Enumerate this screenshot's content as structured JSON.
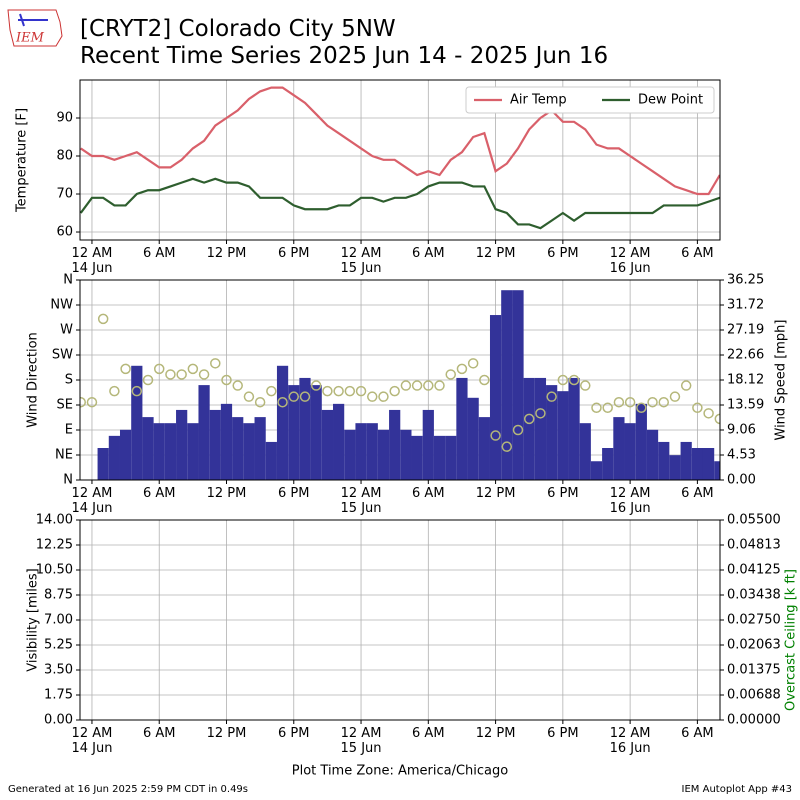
{
  "header": {
    "title": [
      "[CRYT2] Colorado City 5NW",
      "Recent Time Series 2025 Jun 14 - 2025 Jun 16"
    ],
    "logo_text": "IEM"
  },
  "footer": {
    "left": "Generated at 16 Jun 2025 2:59 PM CDT in 0.49s",
    "right": "IEM Autoplot App #43"
  },
  "chart_data": [
    {
      "type": "line",
      "ylabel": "Temperature [F]",
      "x": [
        "2025-06-13T23:00",
        "2025-06-14T00:00",
        "2025-06-14T01:00",
        "2025-06-14T02:00",
        "2025-06-14T03:00",
        "2025-06-14T04:00",
        "2025-06-14T05:00",
        "2025-06-14T06:00",
        "2025-06-14T07:00",
        "2025-06-14T08:00",
        "2025-06-14T09:00",
        "2025-06-14T10:00",
        "2025-06-14T11:00",
        "2025-06-14T12:00",
        "2025-06-14T13:00",
        "2025-06-14T14:00",
        "2025-06-14T15:00",
        "2025-06-14T16:00",
        "2025-06-14T17:00",
        "2025-06-14T18:00",
        "2025-06-14T19:00",
        "2025-06-14T20:00",
        "2025-06-14T21:00",
        "2025-06-14T22:00",
        "2025-06-14T23:00",
        "2025-06-15T00:00",
        "2025-06-15T01:00",
        "2025-06-15T02:00",
        "2025-06-15T03:00",
        "2025-06-15T04:00",
        "2025-06-15T05:00",
        "2025-06-15T06:00",
        "2025-06-15T07:00",
        "2025-06-15T08:00",
        "2025-06-15T09:00",
        "2025-06-15T10:00",
        "2025-06-15T11:00",
        "2025-06-15T12:00",
        "2025-06-15T13:00",
        "2025-06-15T14:00",
        "2025-06-15T15:00",
        "2025-06-15T16:00",
        "2025-06-15T17:00",
        "2025-06-15T18:00",
        "2025-06-15T19:00",
        "2025-06-15T20:00",
        "2025-06-15T21:00",
        "2025-06-15T22:00",
        "2025-06-15T23:00",
        "2025-06-16T00:00",
        "2025-06-16T01:00",
        "2025-06-16T02:00",
        "2025-06-16T03:00",
        "2025-06-16T04:00",
        "2025-06-16T05:00",
        "2025-06-16T06:00",
        "2025-06-16T07:00",
        "2025-06-16T08:00"
      ],
      "series": [
        {
          "name": "Air Temp",
          "color": "#d9606a",
          "values": [
            82,
            80,
            80,
            79,
            80,
            81,
            79,
            77,
            77,
            79,
            82,
            84,
            88,
            90,
            92,
            95,
            97,
            98,
            98,
            96,
            94,
            91,
            88,
            86,
            84,
            82,
            80,
            79,
            79,
            77,
            75,
            76,
            75,
            79,
            81,
            85,
            86,
            76,
            78,
            82,
            87,
            90,
            92,
            89,
            89,
            87,
            83,
            82,
            82,
            80,
            78,
            76,
            74,
            72,
            71,
            70,
            70,
            75
          ]
        },
        {
          "name": "Dew Point",
          "color": "#2e5e2e",
          "values": [
            65,
            69,
            69,
            67,
            67,
            70,
            71,
            71,
            72,
            73,
            74,
            73,
            74,
            73,
            73,
            72,
            69,
            69,
            69,
            67,
            66,
            66,
            66,
            67,
            67,
            69,
            69,
            68,
            69,
            69,
            70,
            72,
            73,
            73,
            73,
            72,
            72,
            66,
            65,
            62,
            62,
            61,
            63,
            65,
            63,
            65,
            65,
            65,
            65,
            65,
            65,
            65,
            67,
            67,
            67,
            67,
            68,
            69
          ]
        }
      ],
      "xlim": [
        "2025-06-13T22:56",
        "2025-06-16T08:01"
      ],
      "xticks": [
        {
          "value": "2025-06-14T00:00",
          "label": "12 AM\n14 Jun"
        },
        {
          "value": "2025-06-14T06:00",
          "label": "6 AM"
        },
        {
          "value": "2025-06-14T12:00",
          "label": "12 PM"
        },
        {
          "value": "2025-06-14T18:00",
          "label": "6 PM"
        },
        {
          "value": "2025-06-15T00:00",
          "label": "12 AM\n15 Jun"
        },
        {
          "value": "2025-06-15T06:00",
          "label": "6 AM"
        },
        {
          "value": "2025-06-15T12:00",
          "label": "12 PM"
        },
        {
          "value": "2025-06-15T18:00",
          "label": "6 PM"
        },
        {
          "value": "2025-06-16T00:00",
          "label": "12 AM\n16 Jun"
        },
        {
          "value": "2025-06-16T06:00",
          "label": "6 AM"
        }
      ],
      "ylim": [
        57.9,
        100
      ],
      "yticks": [
        60,
        70,
        80,
        90
      ],
      "grid": true,
      "legend": "upper right"
    },
    {
      "type": "combo",
      "ylabel": "Wind Direction",
      "y2label": "Wind Speed [mph]",
      "x": [
        "2025-06-13T23:00",
        "2025-06-14T00:00",
        "2025-06-14T01:00",
        "2025-06-14T02:00",
        "2025-06-14T03:00",
        "2025-06-14T04:00",
        "2025-06-14T05:00",
        "2025-06-14T06:00",
        "2025-06-14T07:00",
        "2025-06-14T08:00",
        "2025-06-14T09:00",
        "2025-06-14T10:00",
        "2025-06-14T11:00",
        "2025-06-14T12:00",
        "2025-06-14T13:00",
        "2025-06-14T14:00",
        "2025-06-14T15:00",
        "2025-06-14T16:00",
        "2025-06-14T17:00",
        "2025-06-14T18:00",
        "2025-06-14T19:00",
        "2025-06-14T20:00",
        "2025-06-14T21:00",
        "2025-06-14T22:00",
        "2025-06-14T23:00",
        "2025-06-15T00:00",
        "2025-06-15T01:00",
        "2025-06-15T02:00",
        "2025-06-15T03:00",
        "2025-06-15T04:00",
        "2025-06-15T05:00",
        "2025-06-15T06:00",
        "2025-06-15T07:00",
        "2025-06-15T08:00",
        "2025-06-15T09:00",
        "2025-06-15T10:00",
        "2025-06-15T11:00",
        "2025-06-15T12:00",
        "2025-06-15T13:00",
        "2025-06-15T14:00",
        "2025-06-15T15:00",
        "2025-06-15T16:00",
        "2025-06-15T17:00",
        "2025-06-15T18:00",
        "2025-06-15T19:00",
        "2025-06-15T20:00",
        "2025-06-15T21:00",
        "2025-06-15T22:00",
        "2025-06-15T23:00",
        "2025-06-16T00:00",
        "2025-06-16T01:00",
        "2025-06-16T02:00",
        "2025-06-16T03:00",
        "2025-06-16T04:00",
        "2025-06-16T05:00",
        "2025-06-16T06:00",
        "2025-06-16T07:00",
        "2025-06-16T08:00"
      ],
      "series": [
        {
          "kind": "bar",
          "axis": "y2",
          "color": "#333399",
          "values": [
            0,
            0,
            5.8,
            8.0,
            9.1,
            20.7,
            11.4,
            10.3,
            10.3,
            12.7,
            10.3,
            17.2,
            12.7,
            13.8,
            11.4,
            10.3,
            11.4,
            6.9,
            20.7,
            17.2,
            18.5,
            17.2,
            12.7,
            13.8,
            9.1,
            10.3,
            10.3,
            9.1,
            12.7,
            9.1,
            8.0,
            12.7,
            8.0,
            8.0,
            18.5,
            14.9,
            11.4,
            29.9,
            34.4,
            34.4,
            18.5,
            18.5,
            17.2,
            16.1,
            18.5,
            10.3,
            3.4,
            5.8,
            11.4,
            10.3,
            13.8,
            9.1,
            6.9,
            4.5,
            6.9,
            5.8,
            5.8,
            3.4
          ]
        },
        {
          "kind": "scatter",
          "axis": "y",
          "color": "#b5b77a",
          "values": [
            140,
            140,
            290,
            160,
            200,
            160,
            180,
            200,
            190,
            190,
            200,
            190,
            210,
            180,
            170,
            150,
            140,
            160,
            140,
            150,
            150,
            170,
            160,
            160,
            160,
            160,
            150,
            150,
            160,
            170,
            170,
            170,
            170,
            190,
            200,
            210,
            180,
            80,
            60,
            90,
            110,
            120,
            150,
            180,
            180,
            170,
            130,
            130,
            140,
            140,
            130,
            140,
            140,
            150,
            170,
            130,
            120,
            110
          ]
        }
      ],
      "xlim": [
        "2025-06-13T22:56",
        "2025-06-16T08:01"
      ],
      "xticks": [
        {
          "value": "2025-06-14T00:00",
          "label": "12 AM\n14 Jun"
        },
        {
          "value": "2025-06-14T06:00",
          "label": "6 AM"
        },
        {
          "value": "2025-06-14T12:00",
          "label": "12 PM"
        },
        {
          "value": "2025-06-14T18:00",
          "label": "6 PM"
        },
        {
          "value": "2025-06-15T00:00",
          "label": "12 AM\n15 Jun"
        },
        {
          "value": "2025-06-15T06:00",
          "label": "6 AM"
        },
        {
          "value": "2025-06-15T12:00",
          "label": "12 PM"
        },
        {
          "value": "2025-06-15T18:00",
          "label": "6 PM"
        },
        {
          "value": "2025-06-16T00:00",
          "label": "12 AM\n16 Jun"
        },
        {
          "value": "2025-06-16T06:00",
          "label": "6 AM"
        }
      ],
      "ylim": [
        0,
        360
      ],
      "yticks": [
        {
          "value": 0,
          "label": "N"
        },
        {
          "value": 45,
          "label": "NE"
        },
        {
          "value": 90,
          "label": "E"
        },
        {
          "value": 135,
          "label": "SE"
        },
        {
          "value": 180,
          "label": "S"
        },
        {
          "value": 225,
          "label": "SW"
        },
        {
          "value": 270,
          "label": "W"
        },
        {
          "value": 315,
          "label": "NW"
        },
        {
          "value": 360,
          "label": "N"
        }
      ],
      "y2lim": [
        0,
        36.25
      ],
      "y2ticks": [
        {
          "value": 0,
          "label": "0.00"
        },
        {
          "value": 4.53125,
          "label": "4.53"
        },
        {
          "value": 9.0625,
          "label": "9.06"
        },
        {
          "value": 13.59375,
          "label": "13.59"
        },
        {
          "value": 18.125,
          "label": "18.12"
        },
        {
          "value": 22.65625,
          "label": "22.66"
        },
        {
          "value": 27.1875,
          "label": "27.19"
        },
        {
          "value": 31.71875,
          "label": "31.72"
        },
        36.25
      ],
      "grid": true
    },
    {
      "type": "line",
      "ylabel": "Visibility [miles]",
      "y2label": "Overcast Ceiling [k ft]",
      "y2label_color": "#008000",
      "xlabel": "Plot Time Zone: America/Chicago",
      "series": [],
      "xlim": [
        "2025-06-13T22:56",
        "2025-06-16T08:01"
      ],
      "xticks": [
        {
          "value": "2025-06-14T00:00",
          "label": "12 AM\n14 Jun"
        },
        {
          "value": "2025-06-14T06:00",
          "label": "6 AM"
        },
        {
          "value": "2025-06-14T12:00",
          "label": "12 PM"
        },
        {
          "value": "2025-06-14T18:00",
          "label": "6 PM"
        },
        {
          "value": "2025-06-15T00:00",
          "label": "12 AM\n15 Jun"
        },
        {
          "value": "2025-06-15T06:00",
          "label": "6 AM"
        },
        {
          "value": "2025-06-15T12:00",
          "label": "12 PM"
        },
        {
          "value": "2025-06-15T18:00",
          "label": "6 PM"
        },
        {
          "value": "2025-06-16T00:00",
          "label": "12 AM\n16 Jun"
        },
        {
          "value": "2025-06-16T06:00",
          "label": "6 AM"
        }
      ],
      "ylim": [
        0,
        14
      ],
      "yticks": [
        {
          "value": 0,
          "label": "0.00"
        },
        1.75,
        {
          "value": 3.5,
          "label": "3.50"
        },
        5.25,
        {
          "value": 7,
          "label": "7.00"
        },
        8.75,
        {
          "value": 10.5,
          "label": "10.50"
        },
        12.25,
        {
          "value": 14,
          "label": "14.00"
        }
      ],
      "y2lim": [
        0,
        0.055
      ],
      "y2ticks": [
        {
          "value": 0,
          "label": "0.00000"
        },
        {
          "value": 0.006875,
          "label": "0.00688"
        },
        0.01375,
        {
          "value": 0.020625,
          "label": "0.02063"
        },
        {
          "value": 0.0275,
          "label": "0.02750"
        },
        {
          "value": 0.034375,
          "label": "0.03438"
        },
        0.04125,
        {
          "value": 0.048125,
          "label": "0.04813"
        },
        {
          "value": 0.055,
          "label": "0.05500"
        }
      ],
      "grid": true
    }
  ]
}
